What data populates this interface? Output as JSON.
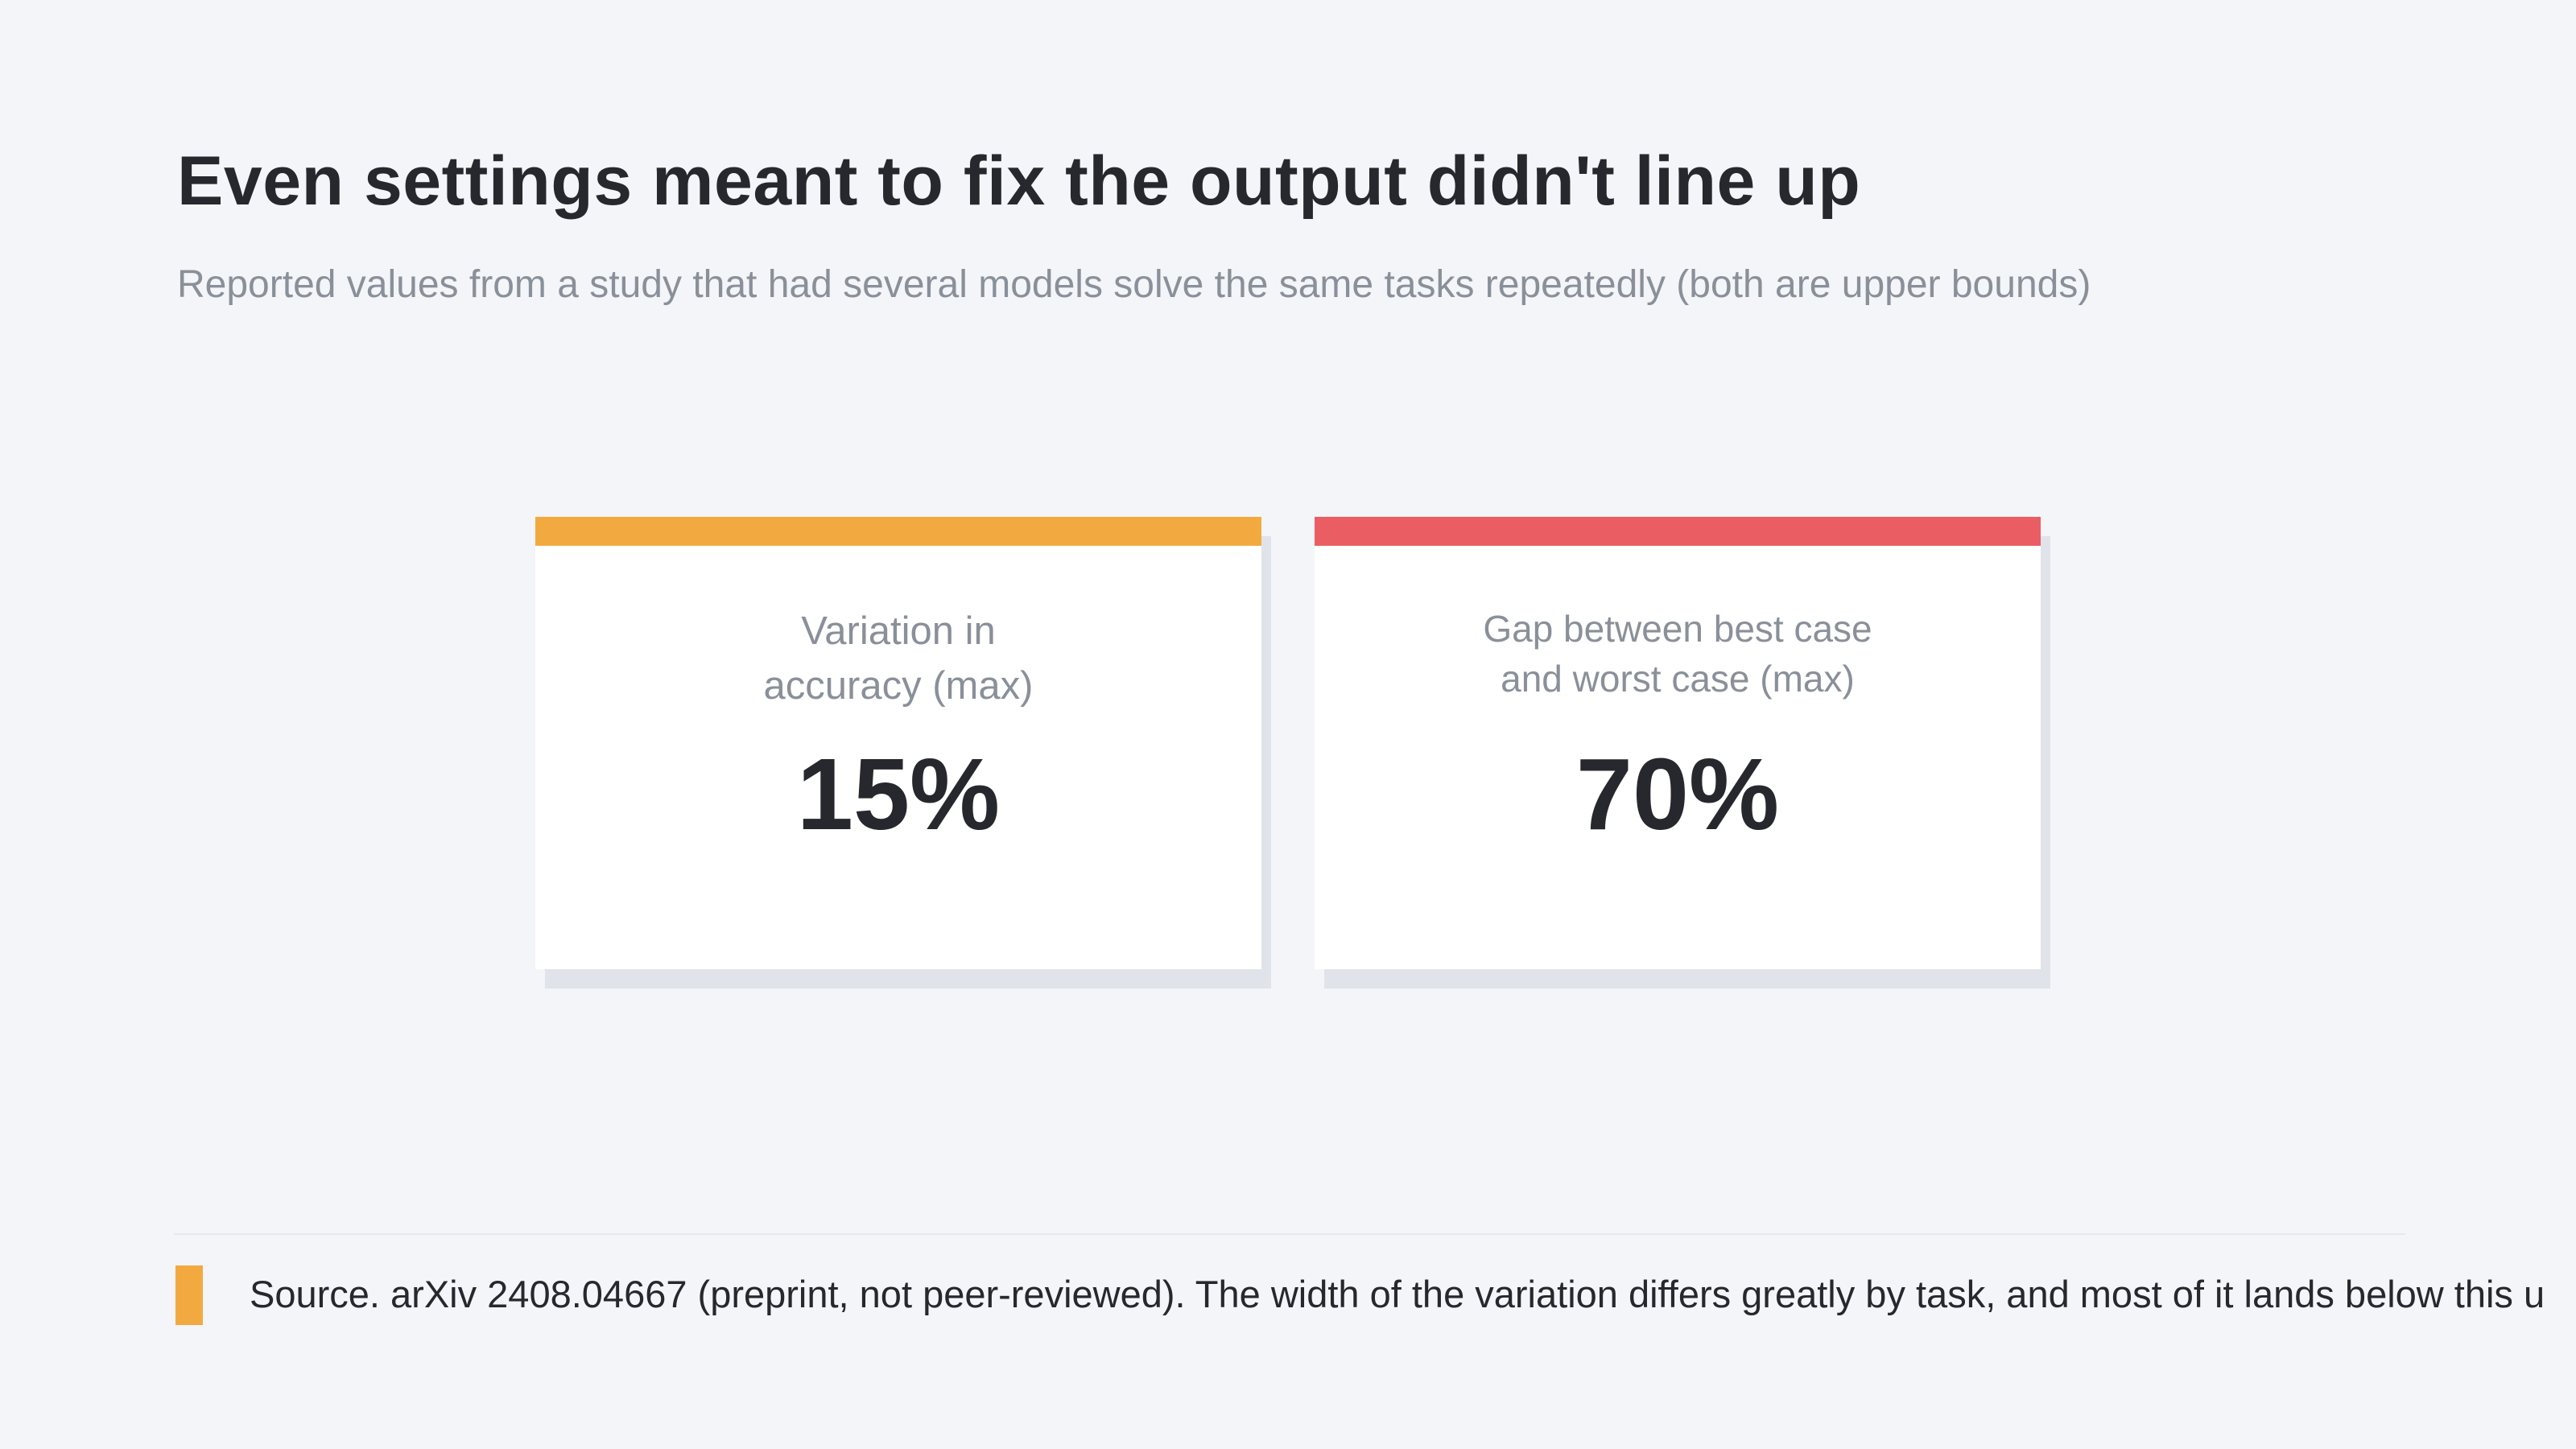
{
  "chart_data": {
    "type": "table",
    "title": "Even settings meant to fix the output didn't line up",
    "subtitle": "Reported values from a study that had several models solve the same tasks repeatedly (both are upper bounds)",
    "cards": [
      {
        "label": "Variation in accuracy (max)",
        "label_lines": [
          "Variation in",
          "accuracy (max)"
        ],
        "value": 15,
        "value_label": "15%",
        "accent": "#f2aa40"
      },
      {
        "label": "Gap between best case and worst case (max)",
        "label_lines": [
          "Gap between best case",
          "and worst case (max)"
        ],
        "value": 70,
        "value_label": "70%",
        "accent": "#ea5e63"
      }
    ],
    "source": "Source. arXiv 2408.04667 (preprint, not peer-reviewed). The width of the variation differs greatly by task, and most of it lands below this u",
    "source_accent": "#f2aa40"
  }
}
